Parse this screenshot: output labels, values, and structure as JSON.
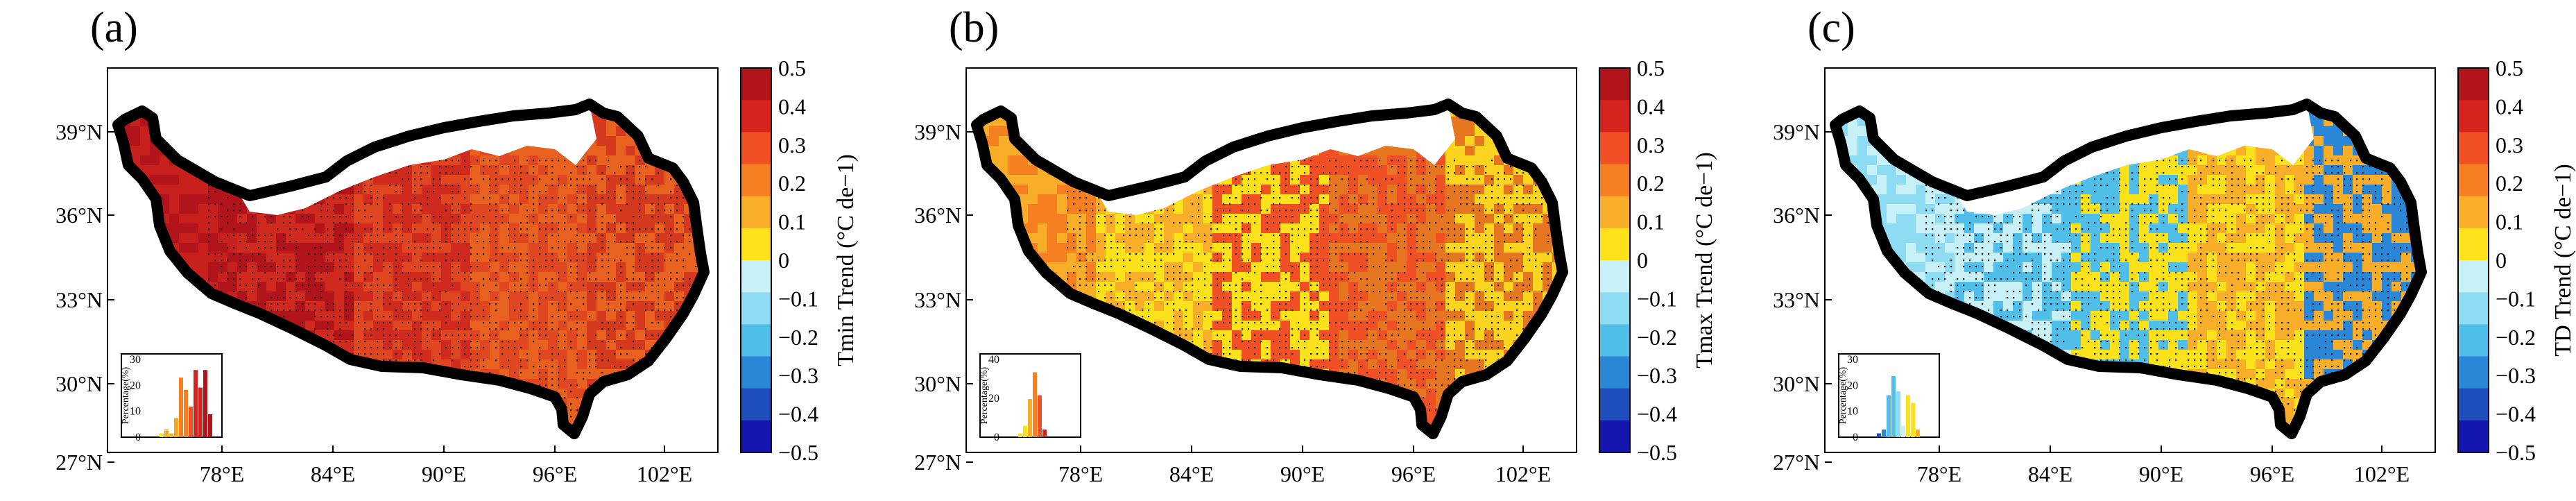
{
  "figure": {
    "lon_ticks": [
      "78°E",
      "84°E",
      "90°E",
      "96°E",
      "102°E"
    ],
    "lat_ticks": [
      "39°N",
      "36°N",
      "33°N",
      "30°N",
      "27°N"
    ],
    "colorbar_ticks": [
      "0.5",
      "0.4",
      "0.3",
      "0.2",
      "0.1",
      "0",
      "−0.1",
      "−0.2",
      "−0.3",
      "−0.4",
      "−0.5"
    ],
    "colorbar_colors": [
      "#b2141b",
      "#d7231e",
      "#f05023",
      "#f57f21",
      "#f9ae2a",
      "#fbe21a",
      "#c8f1f7",
      "#8ddcf3",
      "#4fbfe9",
      "#2a86d6",
      "#1f4fbd",
      "#1516b0"
    ]
  },
  "panels": [
    {
      "label": "(a)",
      "colorbar_title_html": "T<tspan font-size='0.7em' dy='8'>min</tspan><tspan dy='-8'> Trend (°C de</tspan><tspan font-size='0.7em' dy='-12'>−1</tspan><tspan dy='12'>)</tspan>",
      "colorbar_title": "Tmin Trend (°C de−1)",
      "inset": {
        "ylabel": "Percentage(%)",
        "yticks": [
          "30",
          "20",
          "10",
          "0"
        ],
        "bars": [
          [
            0.05,
            "#fbe21a"
          ],
          [
            0.1,
            "#f9ae2a"
          ],
          [
            0.05,
            "#f9ae2a"
          ],
          [
            0.25,
            "#f5a623"
          ],
          [
            0.78,
            "#f57f21"
          ],
          [
            0.62,
            "#f57f21"
          ],
          [
            0.4,
            "#f05023"
          ],
          [
            0.88,
            "#d7231e"
          ],
          [
            0.65,
            "#d7231e"
          ],
          [
            0.88,
            "#b2141b"
          ],
          [
            0.3,
            "#b2141b"
          ]
        ]
      },
      "fill": [
        "#c8201c",
        "#b2141b",
        "#d02a1e",
        "#e0461f",
        "#e8611f",
        "#d53a1e"
      ],
      "white_ratio": 0.12
    },
    {
      "label": "(b)",
      "colorbar_title": "Tmax Trend (°C de−1)",
      "inset": {
        "ylabel": "Percentage(%)",
        "yticks": [
          "40",
          "20",
          "0"
        ],
        "bars": [
          [
            0.05,
            "#fbe21a"
          ],
          [
            0.15,
            "#fbe21a"
          ],
          [
            0.5,
            "#f9ae2a"
          ],
          [
            0.85,
            "#f57f21"
          ],
          [
            0.55,
            "#f05023"
          ],
          [
            0.1,
            "#d7231e"
          ]
        ]
      },
      "fill": [
        "#f57f21",
        "#f9ae2a",
        "#fbe21a",
        "#f05023",
        "#e6761f",
        "#fbd420"
      ],
      "white_ratio": 0.12
    },
    {
      "label": "(c)",
      "colorbar_title": "TD Trend (°C de−1)",
      "inset": {
        "ylabel": "Percentage(%)",
        "yticks": [
          "30",
          "20",
          "10",
          "0"
        ],
        "bars": [
          [
            0.05,
            "#1f4fbd"
          ],
          [
            0.1,
            "#2a86d6"
          ],
          [
            0.55,
            "#4fbfe9"
          ],
          [
            0.8,
            "#4fbfe9"
          ],
          [
            0.6,
            "#8ddcf3"
          ],
          [
            0.15,
            "#c8f1f7"
          ],
          [
            0.55,
            "#fbe21a"
          ],
          [
            0.45,
            "#fbe21a"
          ],
          [
            0.1,
            "#f9ae2a"
          ]
        ]
      },
      "fill": [
        "#8ddcf3",
        "#c8f1f7",
        "#4fbfe9",
        "#fbe21a",
        "#f9ae2a",
        "#2a86d6"
      ],
      "white_ratio": 0.12
    }
  ]
}
